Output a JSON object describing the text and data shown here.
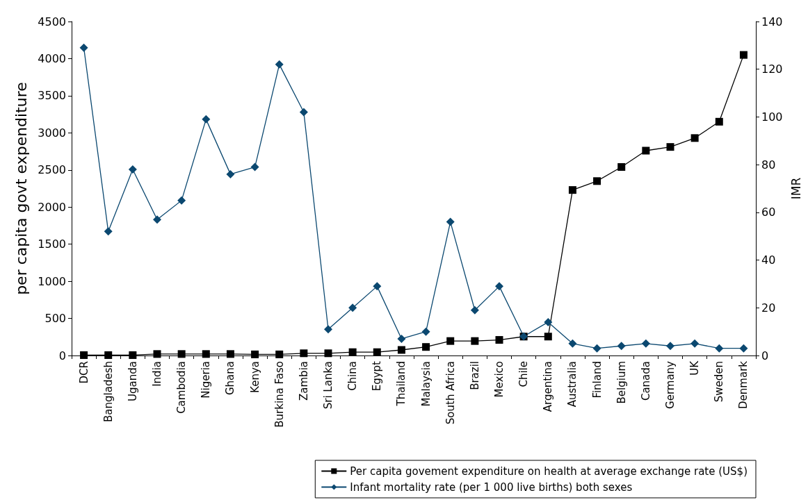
{
  "chart_data": {
    "type": "line",
    "ylabel": "per capita govt expenditure",
    "y2label": "IMR",
    "categories": [
      "DCR",
      "Bangladesh",
      "Uganda",
      "India",
      "Cambodia",
      "Nigeria",
      "Ghana",
      "Kenya",
      "Burkina Faso",
      "Zambia",
      "Sri Lanka",
      "China",
      "Egypt",
      "Thailand",
      "Malaysia",
      "South Africa",
      "Brazil",
      "Mexico",
      "Chile",
      "Argentina",
      "Australia",
      "Finland",
      "Belgium",
      "Canada",
      "Germany",
      "UK",
      "Sweden",
      "Denmark"
    ],
    "series": [
      {
        "name": "Per capita govement expenditure on health at average exchange rate (US$)",
        "color": "#000000",
        "marker": "square",
        "values": [
          5,
          5,
          5,
          20,
          20,
          20,
          20,
          15,
          15,
          30,
          30,
          45,
          45,
          75,
          115,
          195,
          195,
          210,
          255,
          255,
          2230,
          2350,
          2540,
          2760,
          2810,
          2930,
          3150,
          4050
        ]
      },
      {
        "name": "Infant mortality rate (per 1 000 live births) both sexes",
        "color": "#0b4870",
        "marker": "diamond",
        "axis": "y2",
        "values": [
          129,
          52,
          78,
          57,
          65,
          99,
          76,
          79,
          122,
          102,
          11,
          20,
          29,
          7,
          10,
          56,
          19,
          29,
          8,
          14,
          5,
          3,
          4,
          5,
          4,
          5,
          3,
          3
        ]
      }
    ],
    "ylim": [
      0,
      4500
    ],
    "yticks": [
      0,
      500,
      1000,
      1500,
      2000,
      2500,
      3000,
      3500,
      4000,
      4500
    ],
    "y2lim": [
      0,
      140
    ],
    "y2ticks": [
      0,
      20,
      40,
      60,
      80,
      100,
      120,
      140
    ],
    "grid": false,
    "legend": "bottom",
    "line_style": "solid"
  }
}
